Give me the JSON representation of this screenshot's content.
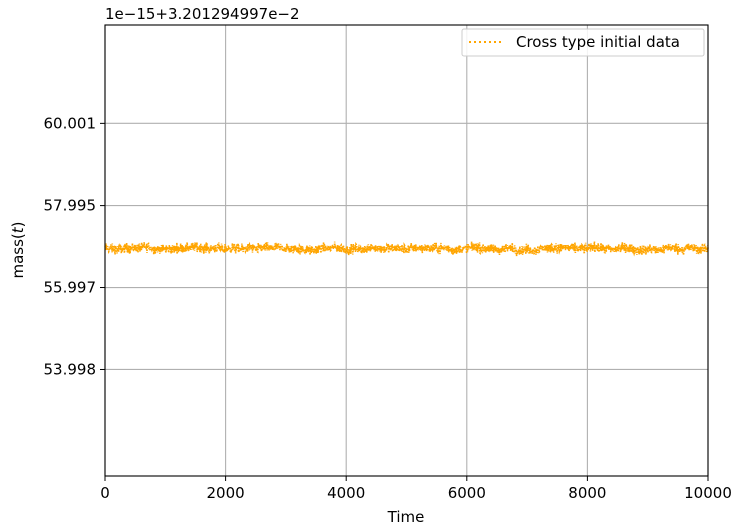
{
  "chart_data": {
    "type": "line",
    "title": "",
    "xlabel": "Time",
    "ylabel_prefix": "mass(",
    "ylabel_var": "t",
    "ylabel_suffix": ")",
    "offset_text": "1e−15+3.201294997e−2",
    "xlim": [
      0,
      10000
    ],
    "ylim": [
      51.4,
      62.4
    ],
    "x_ticks": [
      0,
      2000,
      4000,
      6000,
      8000,
      10000
    ],
    "x_tick_labels": [
      "0",
      "2000",
      "4000",
      "6000",
      "8000",
      "10000"
    ],
    "y_ticks": [
      53.998,
      55.997,
      57.995,
      60.001
    ],
    "y_tick_labels": [
      "53.998",
      "55.997",
      "57.995",
      "60.001"
    ],
    "grid": true,
    "legend_position": "top-right",
    "series": [
      {
        "name": "Cross type initial data",
        "color": "#FFA500",
        "line_style": "dotted",
        "mean": 56.95,
        "noise_amplitude": 0.17,
        "x_range": [
          0,
          10000
        ],
        "point_count": 10000
      }
    ]
  }
}
